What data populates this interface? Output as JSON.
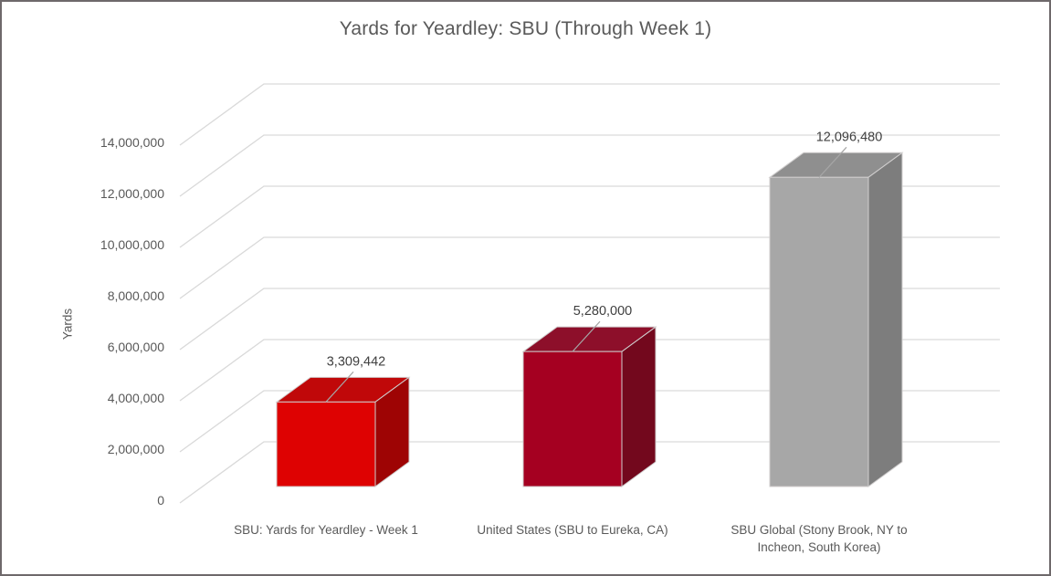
{
  "window": {
    "background": "#FFFFFF",
    "border_color": "#6E696B"
  },
  "chart_data": {
    "type": "bar",
    "variant": "3d-column",
    "title": "Yards for Yeardley: SBU (Through Week 1)",
    "ylabel": "Yards",
    "xlabel": "",
    "categories": [
      "SBU: Yards for Yeardley - Week 1",
      "United States (SBU to Eureka, CA)",
      "SBU Global (Stony Brook, NY to Incheon, South Korea)"
    ],
    "category_label_lines": [
      [
        "SBU: Yards for Yeardley - Week 1"
      ],
      [
        "United States (SBU to Eureka, CA)"
      ],
      [
        "SBU Global (Stony Brook, NY to",
        "Incheon, South Korea)"
      ]
    ],
    "values": [
      3309442,
      5280000,
      12096480
    ],
    "data_labels": [
      "3,309,442",
      "5,280,000",
      "12,096,480"
    ],
    "ylim": [
      0,
      14000000
    ],
    "ytick_interval": 2000000,
    "ytick_labels": [
      "0",
      "2,000,000",
      "4,000,000",
      "6,000,000",
      "8,000,000",
      "10,000,000",
      "12,000,000",
      "14,000,000"
    ],
    "grid": true,
    "legend": "none",
    "bar_colors": [
      {
        "front": "#DE0202",
        "top": "#C00809",
        "side": "#9E0404"
      },
      {
        "front": "#A50021",
        "top": "#8D0F2A",
        "side": "#73081D"
      },
      {
        "front": "#A7A7A7",
        "top": "#8F8F8F",
        "side": "#7D7D7D"
      }
    ],
    "gridline_color": "#D9D9D9",
    "edge_color": "#D0CECE",
    "leader_color": "#A6A6A6",
    "text_colors": {
      "title": "#595959",
      "axis": "#595959",
      "data_label": "#404040"
    }
  }
}
